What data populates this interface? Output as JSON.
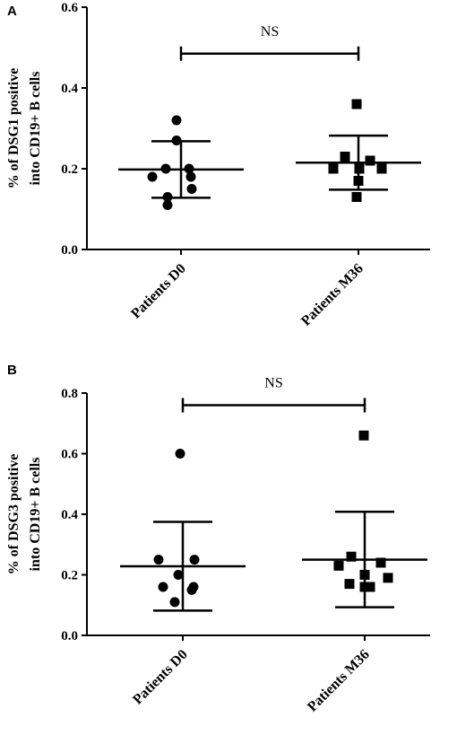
{
  "chart_data": [
    {
      "type": "scatter",
      "panel": "A",
      "ylabel_line1": "% of DSG1 positive",
      "ylabel_line2": "into CD19+ B cells",
      "ylim": [
        0.0,
        0.6
      ],
      "yticks": [
        0.0,
        0.2,
        0.4,
        0.6
      ],
      "ytick_labels": [
        "0.0",
        "0.2",
        "0.4",
        "0.6"
      ],
      "categories": [
        "Patients D0",
        "Patients M36"
      ],
      "groups": [
        {
          "category": "Patients D0",
          "marker": "circle",
          "points": [
            0.32,
            0.27,
            0.2,
            0.2,
            0.18,
            0.18,
            0.15,
            0.13,
            0.11
          ],
          "mean": 0.198,
          "sd_upper": 0.268,
          "sd_lower": 0.128
        },
        {
          "category": "Patients M36",
          "marker": "square",
          "points": [
            0.36,
            0.23,
            0.22,
            0.2,
            0.2,
            0.2,
            0.17,
            0.13
          ],
          "mean": 0.215,
          "sd_upper": 0.282,
          "sd_lower": 0.148
        }
      ],
      "significance": {
        "label": "NS",
        "y": 0.485
      },
      "axis_color": "#000000"
    },
    {
      "type": "scatter",
      "panel": "B",
      "ylabel_line1": "% of DSG3 positive",
      "ylabel_line2": "into CD19+ B cells",
      "ylim": [
        0.0,
        0.8
      ],
      "yticks": [
        0.0,
        0.2,
        0.4,
        0.6,
        0.8
      ],
      "ytick_labels": [
        "0.0",
        "0.2",
        "0.4",
        "0.6",
        "0.8"
      ],
      "categories": [
        "Patients D0",
        "Patients M36"
      ],
      "groups": [
        {
          "category": "Patients D0",
          "marker": "circle",
          "points": [
            0.6,
            0.25,
            0.25,
            0.2,
            0.16,
            0.16,
            0.15,
            0.11
          ],
          "mean": 0.228,
          "sd_upper": 0.375,
          "sd_lower": 0.082
        },
        {
          "category": "Patients M36",
          "marker": "square",
          "points": [
            0.66,
            0.26,
            0.24,
            0.23,
            0.2,
            0.19,
            0.17,
            0.16,
            0.16
          ],
          "mean": 0.25,
          "sd_upper": 0.408,
          "sd_lower": 0.093
        }
      ],
      "significance": {
        "label": "NS",
        "y": 0.76
      },
      "axis_color": "#000000"
    }
  ]
}
